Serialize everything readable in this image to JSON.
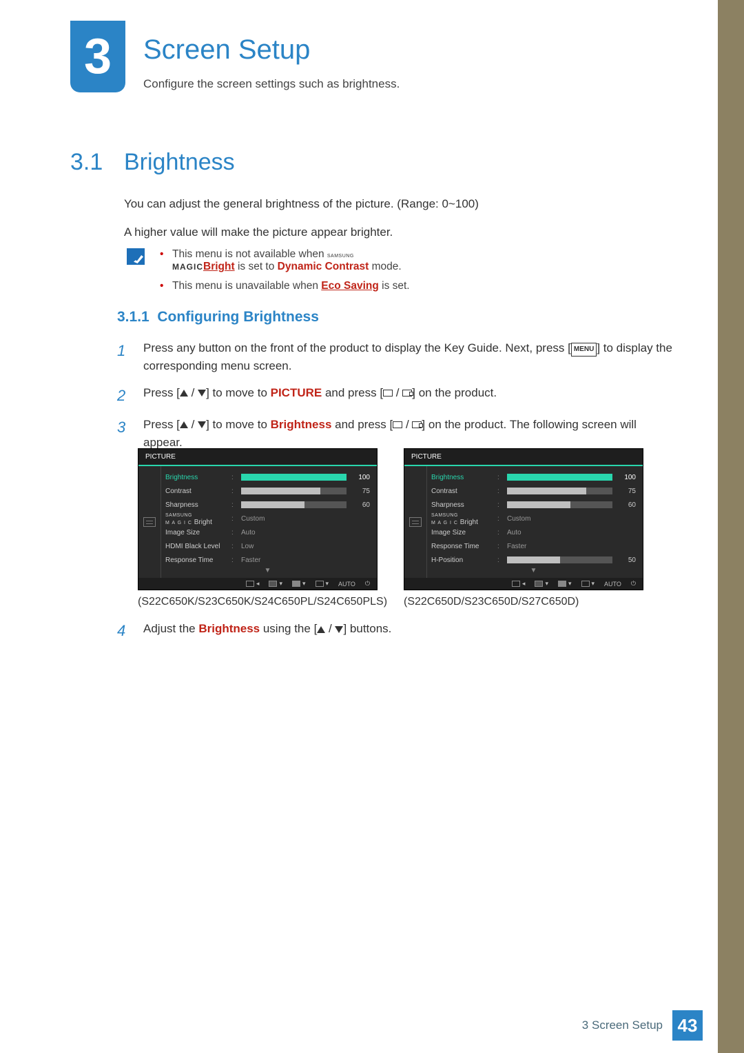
{
  "colors": {
    "accent_blue": "#2b84c6",
    "side_stripe": "#8c8162",
    "highlight_red": "#c02418",
    "osd_bg": "#2a2a2a",
    "osd_accent": "#29d6ad",
    "text": "#333333"
  },
  "chapter": {
    "number": "3",
    "title": "Screen Setup",
    "desc": "Configure the screen settings such as brightness."
  },
  "section": {
    "number": "3.1",
    "title": "Brightness",
    "p1": "You can adjust the general brightness of the picture. (Range: 0~100)",
    "p2": "A higher value will make the picture appear brighter."
  },
  "notes": {
    "n1_a": "This menu is not available when ",
    "n1_magic_sup": "SAMSUNG",
    "n1_magic": "MAGIC",
    "n1_bright": "Bright",
    "n1_b": " is set to ",
    "n1_mode": "Dynamic Contrast",
    "n1_c": " mode.",
    "n2_a": "This menu is unavailable when ",
    "n2_link": "Eco Saving",
    "n2_b": " is set."
  },
  "subsection": {
    "number": "3.1.1",
    "title": "Configuring Brightness"
  },
  "steps": {
    "s1": "Press any button on the front of the product to display the Key Guide. Next, press [",
    "s1_menu": "MENU",
    "s1_b": "] to display the corresponding menu screen.",
    "s2_a": "Press [",
    "s2_b": "] to move to ",
    "s2_pic": "PICTURE",
    "s2_c": " and press [",
    "s2_d": "] on the product.",
    "s3_a": "Press [",
    "s3_b": "] to move to ",
    "s3_br": "Brightness",
    "s3_c": " and press [",
    "s3_d": "] on the product. The following screen will appear.",
    "s4_a": "Adjust the ",
    "s4_br": "Brightness",
    "s4_b": " using the [",
    "s4_c": "] buttons."
  },
  "osd": {
    "title": "PICTURE",
    "magic_sup": "SAMSUNG",
    "magic": "M A G I C",
    "left_caption": "(S22C650K/S23C650K/S24C650PL/S24C650PLS)",
    "right_caption": "(S22C650D/S23C650D/S27C650D)",
    "left_rows": [
      {
        "label": "Brightness",
        "type": "bar",
        "value": 100,
        "pct": 100,
        "selected": true
      },
      {
        "label": "Contrast",
        "type": "bar",
        "value": 75,
        "pct": 75
      },
      {
        "label": "Sharpness",
        "type": "bar",
        "value": 60,
        "pct": 60
      },
      {
        "label": "Bright",
        "type": "text",
        "text": "Custom",
        "magic": true
      },
      {
        "label": "Image Size",
        "type": "text",
        "text": "Auto"
      },
      {
        "label": "HDMI Black Level",
        "type": "text",
        "text": "Low"
      },
      {
        "label": "Response Time",
        "type": "text",
        "text": "Faster"
      }
    ],
    "right_rows": [
      {
        "label": "Brightness",
        "type": "bar",
        "value": 100,
        "pct": 100,
        "selected": true
      },
      {
        "label": "Contrast",
        "type": "bar",
        "value": 75,
        "pct": 75
      },
      {
        "label": "Sharpness",
        "type": "bar",
        "value": 60,
        "pct": 60
      },
      {
        "label": "Bright",
        "type": "text",
        "text": "Custom",
        "magic": true
      },
      {
        "label": "Image Size",
        "type": "text",
        "text": "Auto"
      },
      {
        "label": "Response Time",
        "type": "text",
        "text": "Faster"
      },
      {
        "label": "H-Position",
        "type": "bar",
        "value": 50,
        "pct": 50
      }
    ],
    "footer_auto": "AUTO"
  },
  "footer": {
    "label": "3 Screen Setup",
    "page": "43"
  }
}
